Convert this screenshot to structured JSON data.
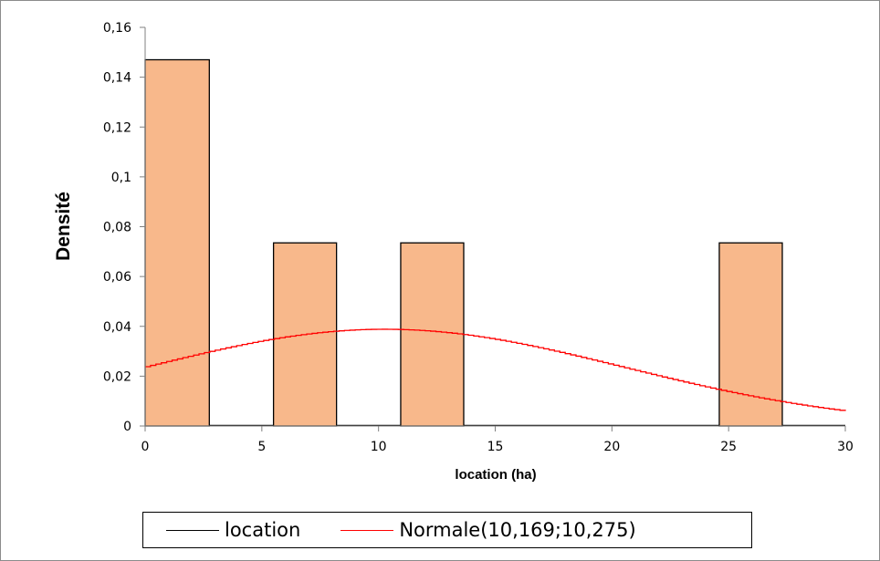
{
  "chart_data": {
    "type": "bar",
    "title": "",
    "xlabel": "location (ha)",
    "ylabel": "Densité",
    "xlim": [
      0,
      30
    ],
    "ylim": [
      0,
      0.16
    ],
    "xticks": [
      0,
      5,
      10,
      15,
      20,
      25,
      30
    ],
    "xtick_labels": [
      "0",
      "5",
      "10",
      "15",
      "20",
      "25",
      "30"
    ],
    "yticks": [
      0,
      0.02,
      0.04,
      0.06,
      0.08,
      0.1,
      0.12,
      0.14,
      0.16
    ],
    "ytick_labels": [
      "0",
      "0,02",
      "0,04",
      "0,06",
      "0,08",
      "0,1",
      "0,12",
      "0,14",
      "0,16"
    ],
    "grid": false,
    "legend_position": "bottom",
    "series": [
      {
        "name": "location",
        "type": "histogram",
        "color": "#f8b88b",
        "edge_color": "#000000",
        "bins": [
          {
            "x0": 0.0,
            "x1": 2.75,
            "density": 0.147
          },
          {
            "x0": 2.75,
            "x1": 5.5,
            "density": 0.0
          },
          {
            "x0": 5.5,
            "x1": 8.2,
            "density": 0.0735
          },
          {
            "x0": 8.2,
            "x1": 10.95,
            "density": 0.0
          },
          {
            "x0": 10.95,
            "x1": 13.65,
            "density": 0.0735
          },
          {
            "x0": 13.65,
            "x1": 24.6,
            "density": 0.0
          },
          {
            "x0": 24.6,
            "x1": 27.3,
            "density": 0.0735
          },
          {
            "x0": 27.3,
            "x1": 30.0,
            "density": 0.0
          }
        ]
      },
      {
        "name": "Normale(10,169;10,275)",
        "type": "line",
        "color": "#ff0000",
        "distribution": "normal",
        "mean": 10.169,
        "std": 10.275,
        "x_range": [
          0,
          30
        ]
      }
    ]
  }
}
